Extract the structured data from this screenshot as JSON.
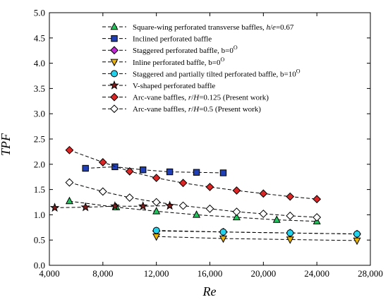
{
  "chart_data": {
    "type": "line",
    "xlabel": "Re",
    "ylabel": "TPF",
    "xlim": [
      4000,
      28000
    ],
    "ylim": [
      0.0,
      5.0
    ],
    "x_ticks": [
      4000,
      8000,
      12000,
      16000,
      20000,
      24000,
      28000
    ],
    "x_tick_labels": [
      "4,000",
      "8,000",
      "12,000",
      "16,000",
      "20,000",
      "24,000",
      "28,000"
    ],
    "y_ticks": [
      0.0,
      0.5,
      1.0,
      1.5,
      2.0,
      2.5,
      3.0,
      3.5,
      4.0,
      4.5,
      5.0
    ],
    "y_tick_labels": [
      "0.0",
      "0.5",
      "1.0",
      "1.5",
      "2.0",
      "2.5",
      "3.0",
      "3.5",
      "4.0",
      "4.5",
      "5.0"
    ],
    "legend_position": "top-right",
    "grid": false,
    "series": [
      {
        "name": "Square-wing perforated transverse baffles, h/e=0.67",
        "legend_parts": [
          [
            "Square-wing perforated transverse baffles, ",
            false
          ],
          [
            "h",
            true
          ],
          [
            "/",
            false
          ],
          [
            "e",
            true
          ],
          [
            "=0.67",
            false
          ]
        ],
        "marker": "triangle-up",
        "color": "#22c55e",
        "x": [
          5500,
          9000,
          12000,
          15000,
          18000,
          21000,
          24000
        ],
        "y": [
          1.27,
          1.15,
          1.07,
          1.0,
          0.95,
          0.9,
          0.87
        ]
      },
      {
        "name": "Inclined perforated baffle",
        "legend_parts": [
          [
            "Inclined perforated baffle",
            false
          ]
        ],
        "marker": "square",
        "color": "#1e3fb8",
        "x": [
          6700,
          8900,
          11000,
          13000,
          15000,
          17000
        ],
        "y": [
          1.92,
          1.95,
          1.89,
          1.85,
          1.84,
          1.83
        ]
      },
      {
        "name": "Staggered perforated baffle, b=0°",
        "legend_parts": [
          [
            "Staggered perforated baffle, b=0",
            false
          ]
        ],
        "legend_sup": "O",
        "marker": "diamond",
        "color": "#c026d3",
        "x": [
          12000,
          17000,
          22000,
          27000
        ],
        "y": [
          0.68,
          0.66,
          0.64,
          0.62
        ]
      },
      {
        "name": "Inline perforated baffle, b=0°",
        "legend_parts": [
          [
            "Inline perforated baffle, b=0",
            false
          ]
        ],
        "legend_sup": "O",
        "marker": "triangle-down",
        "color": "#eab308",
        "x": [
          12000,
          17000,
          22000,
          27000
        ],
        "y": [
          0.57,
          0.53,
          0.51,
          0.49
        ]
      },
      {
        "name": "Staggered and partially tilted perforated baffle, b=10°",
        "legend_parts": [
          [
            "Staggered and partially tilted perforated baffle, b=10",
            false
          ]
        ],
        "legend_sup": "O",
        "marker": "circle",
        "color": "#22d3ee",
        "x": [
          12000,
          17000,
          22000,
          27000
        ],
        "y": [
          0.69,
          0.66,
          0.64,
          0.62
        ]
      },
      {
        "name": "V-shaped perforated baffle",
        "legend_parts": [
          [
            "V-shaped perforated baffle",
            false
          ]
        ],
        "marker": "star",
        "color": "#7f1d1d",
        "x": [
          4400,
          6700,
          8900,
          11000,
          13000
        ],
        "y": [
          1.14,
          1.15,
          1.17,
          1.17,
          1.18
        ]
      },
      {
        "name": "Arc-vane baffles, r/H=0.125 (Present work)",
        "legend_parts": [
          [
            "Arc-vane baffles, ",
            false
          ],
          [
            "r",
            true
          ],
          [
            "/",
            false
          ],
          [
            "H",
            true
          ],
          [
            "=0.125 (Present work)",
            false
          ]
        ],
        "marker": "diamond",
        "color": "#dc2626",
        "x": [
          5500,
          8000,
          10000,
          12000,
          14000,
          16000,
          18000,
          20000,
          22000,
          24000
        ],
        "y": [
          2.28,
          2.04,
          1.86,
          1.73,
          1.63,
          1.55,
          1.48,
          1.42,
          1.36,
          1.31
        ]
      },
      {
        "name": "Arc-vane baffles, r/H=0.5 (Present work)",
        "legend_parts": [
          [
            "Arc-vane baffles, ",
            false
          ],
          [
            "r",
            true
          ],
          [
            "/",
            false
          ],
          [
            "H",
            true
          ],
          [
            "=0.5 (Present work)",
            false
          ]
        ],
        "marker": "diamond",
        "color": "#ffffff",
        "x": [
          5500,
          8000,
          10000,
          12000,
          14000,
          16000,
          18000,
          20000,
          22000,
          24000
        ],
        "y": [
          1.64,
          1.46,
          1.34,
          1.25,
          1.18,
          1.12,
          1.06,
          1.02,
          0.98,
          0.95
        ]
      }
    ]
  }
}
